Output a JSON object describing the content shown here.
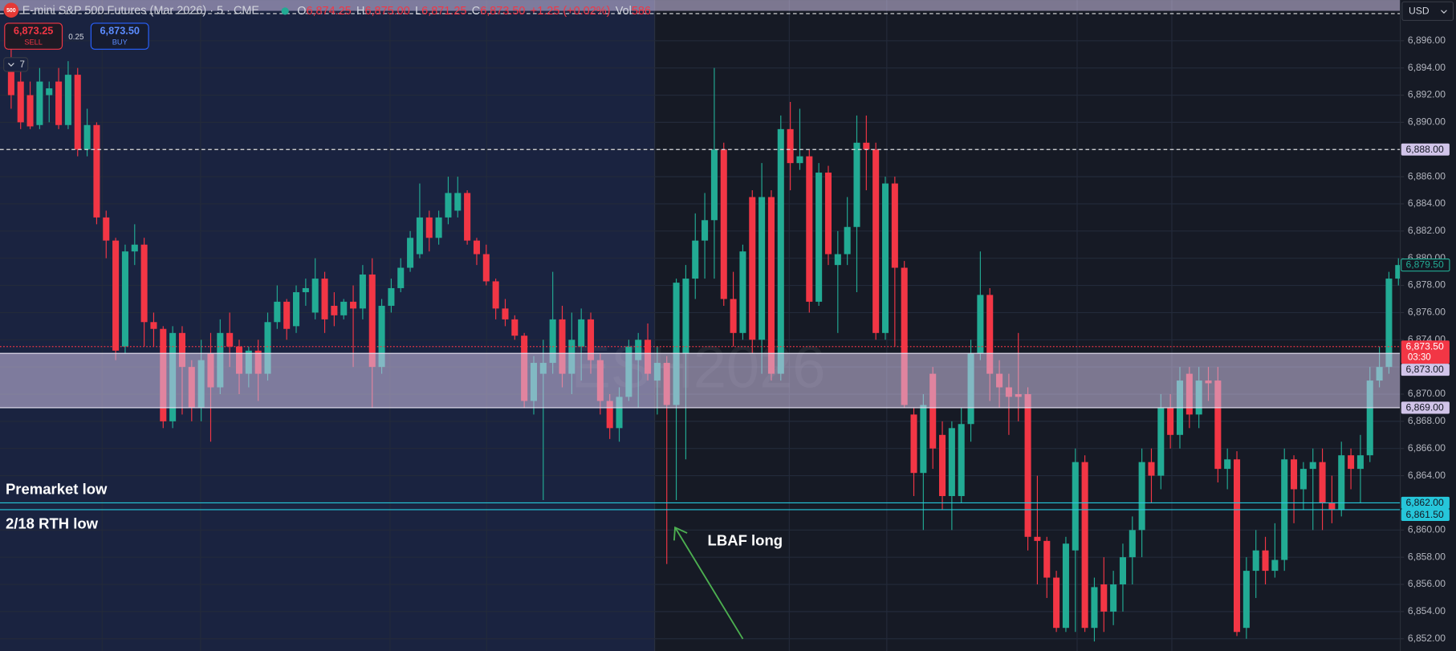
{
  "chart_data": {
    "type": "candlestick",
    "symbol_icon": "500",
    "title": "E-mini S&P 500 Futures (Mar 2026) · 5 · CME",
    "ohlc_legend": [
      {
        "key": "O",
        "value": "6,874.25"
      },
      {
        "key": "H",
        "value": "6,875.00"
      },
      {
        "key": "L",
        "value": "6,871.25"
      },
      {
        "key": "C",
        "value": "6,873.50"
      }
    ],
    "change": "+1.25 (+0.02%)",
    "volume": {
      "key": "Vol",
      "value": "586"
    },
    "sell": {
      "price": "6,873.25",
      "label": "SELL"
    },
    "spread": "0.25",
    "buy": {
      "price": "6,873.50",
      "label": "BUY"
    },
    "indicator_count": "7",
    "currency": "USD",
    "watermark": "ESH2026",
    "up_color": "#22ab94",
    "down_color": "#f23645",
    "open": [
      6894,
      6893,
      6892,
      6889.8,
      6892,
      6893,
      6889.8,
      6893.5,
      6888,
      6889.8,
      6883,
      6881.3,
      6873.5,
      6880.5,
      6881,
      6875.3,
      6874.8,
      6868,
      6874.5,
      6872,
      6869,
      6873,
      6870.5,
      6874.5,
      6873.5,
      6871.5,
      6873.2,
      6871.5,
      6875.3,
      6876.8,
      6875,
      6877.5,
      6876,
      6878.5,
      6876.5,
      6875.8,
      6876.8,
      6876.3,
      6878.8,
      6872,
      6876.5,
      6877.8,
      6879.3,
      6880.3,
      6883,
      6881.5,
      6883,
      6883.5,
      6884.8,
      6881.3,
      6880.3,
      6878.3,
      6876.3,
      6875.5,
      6874.3,
      6869.5,
      6871.5,
      6872.3,
      6875.5,
      6871.5,
      6873.5,
      6875.5,
      6872.5,
      6869.5,
      6867.5,
      6869.8,
      6872.5,
      6874,
      6871,
      6872.3,
      6869.2,
      6873,
      6878.5,
      6881.3,
      6882.8,
      6888,
      6877,
      6874.5,
      6884.5,
      6874,
      6884.5,
      6871.5,
      6889.5,
      6887,
      6887.5,
      6876.8,
      6886.3,
      6879.5,
      6880.3,
      6882.3,
      6888.5,
      6888,
      6874.5,
      6885.5,
      6879.3,
      6868.5,
      6864.2,
      6871.5,
      6867,
      6862.5,
      6862.5,
      6867.8,
      6873,
      6877.3,
      6871.5,
      6870.5,
      6870,
      6870,
      6859.5,
      6859.2,
      6856.5,
      6852.8,
      6858.5,
      6865,
      6852.8,
      6856,
      6854,
      6856,
      6858,
      6860,
      6865,
      6864,
      6869,
      6867,
      6871.5,
      6868.5,
      6871,
      6871,
      6864.5,
      6865.2,
      6852.8,
      6857,
      6858.5,
      6857,
      6857.8,
      6865.2,
      6863,
      6864.5,
      6865,
      6862,
      6861.5,
      6865.5,
      6864.5,
      6865.5,
      6871,
      6872,
      6878.5
    ],
    "high": [
      6895.5,
      6894,
      6893,
      6894,
      6893,
      6894,
      6894.5,
      6894,
      6891,
      6890,
      6883.5,
      6881.5,
      6881,
      6882.5,
      6881.5,
      6876,
      6875,
      6875,
      6875,
      6872.5,
      6874,
      6874.5,
      6875.5,
      6876,
      6874,
      6873.5,
      6874,
      6876,
      6878,
      6877,
      6878,
      6878.5,
      6880,
      6879,
      6877.5,
      6877,
      6878,
      6879.5,
      6880,
      6877,
      6878.5,
      6880,
      6882,
      6885.5,
      6883.5,
      6883.5,
      6886,
      6886,
      6885,
      6881.5,
      6881,
      6878.5,
      6877,
      6875.8,
      6874.5,
      6872.8,
      6874,
      6879,
      6876.5,
      6876,
      6876.3,
      6876,
      6873,
      6870,
      6870.5,
      6874,
      6874.5,
      6875.2,
      6873.5,
      6872.8,
      6878.5,
      6879.5,
      6883.3,
      6884.8,
      6894,
      6888.5,
      6879,
      6881,
      6885,
      6887,
      6885,
      6890.5,
      6891.5,
      6891,
      6888,
      6887,
      6886.8,
      6882,
      6884.5,
      6890.5,
      6890.5,
      6888.5,
      6886,
      6886,
      6879.8,
      6869,
      6870,
      6872,
      6868,
      6868,
      6869,
      6874,
      6880.5,
      6877.8,
      6872.5,
      6871.5,
      6874.5,
      6870.5,
      6864,
      6859.5,
      6857,
      6859.5,
      6866,
      6865.5,
      6856.5,
      6858,
      6857,
      6859,
      6861,
      6866,
      6866,
      6870,
      6870,
      6872,
      6872,
      6872,
      6872,
      6872,
      6866,
      6865.8,
      6858,
      6860,
      6859.5,
      6860.5,
      6866,
      6865.5,
      6865,
      6866,
      6866,
      6864,
      6866.5,
      6866,
      6867,
      6872,
      6873.5,
      6879,
      6880
    ],
    "low": [
      6891,
      6889.5,
      6889.5,
      6889.5,
      6890,
      6889.5,
      6889.5,
      6887.5,
      6887.5,
      6882.5,
      6880,
      6872.5,
      6873,
      6879.5,
      6873.5,
      6873.5,
      6867.5,
      6867.5,
      6868.5,
      6868,
      6868,
      6866.5,
      6870,
      6872,
      6870,
      6870.5,
      6869.5,
      6871,
      6874.8,
      6874,
      6874.5,
      6876.5,
      6875.5,
      6874.5,
      6875,
      6875.5,
      6872,
      6875.5,
      6869,
      6871.5,
      6876,
      6877.5,
      6879,
      6880,
      6880.5,
      6881,
      6882.5,
      6883,
      6881,
      6879.5,
      6878,
      6875.5,
      6875,
      6874,
      6869,
      6868.5,
      6862.2,
      6871.5,
      6870.5,
      6870,
      6871,
      6871.5,
      6868.5,
      6866.7,
      6866.5,
      6869.5,
      6869,
      6871,
      6868.5,
      6857.5,
      6862.2,
      6865.2,
      6877,
      6878.5,
      6878.5,
      6876.5,
      6873.5,
      6874,
      6873,
      6871.5,
      6871,
      6871,
      6885,
      6886.5,
      6876,
      6876.5,
      6879.5,
      6874.5,
      6879.5,
      6877.5,
      6885,
      6874,
      6874,
      6873.5,
      6869,
      6862.5,
      6860,
      6864.5,
      6861.5,
      6860,
      6862,
      6866.5,
      6872.5,
      6869.5,
      6869,
      6867,
      6868,
      6858.5,
      6856,
      6855,
      6852.5,
      6852.5,
      6852.5,
      6852.5,
      6851.8,
      6852.5,
      6853,
      6854,
      6856,
      6858,
      6862,
      6863,
      6866,
      6866,
      6867.5,
      6867.5,
      6869.5,
      6863.5,
      6863,
      6852.2,
      6852,
      6855,
      6856,
      6856.5,
      6857,
      6860.5,
      6861.5,
      6860,
      6860,
      6860.5,
      6861,
      6863,
      6862,
      6865,
      6870.5,
      6871.5,
      6878
    ],
    "close": [
      6892,
      6890,
      6889.7,
      6893,
      6892.5,
      6889.8,
      6893.5,
      6888,
      6889.8,
      6883,
      6881.3,
      6873.2,
      6880.5,
      6881,
      6875.3,
      6874.8,
      6868,
      6874.5,
      6872,
      6869,
      6872.5,
      6870.5,
      6874.5,
      6873.5,
      6871.5,
      6873.2,
      6871.5,
      6875.3,
      6876.8,
      6874.8,
      6877.5,
      6877.8,
      6878.5,
      6875.5,
      6875.8,
      6876.8,
      6876.3,
      6878.8,
      6872,
      6876.5,
      6877.8,
      6879.3,
      6881.5,
      6883,
      6881.5,
      6883,
      6884.8,
      6884.8,
      6881.3,
      6880.3,
      6878.3,
      6876.3,
      6875.5,
      6874.3,
      6869.5,
      6872.3,
      6872.3,
      6875.5,
      6871.5,
      6874,
      6875.5,
      6872.5,
      6869.5,
      6867.5,
      6869.8,
      6873.5,
      6874,
      6871.5,
      6872.3,
      6869.2,
      6878.2,
      6878.5,
      6881.3,
      6882.8,
      6888,
      6877,
      6874.5,
      6880.5,
      6874,
      6884.5,
      6871.5,
      6889.5,
      6887,
      6887.5,
      6876.8,
      6886.3,
      6880.3,
      6880.3,
      6882.3,
      6888.5,
      6888,
      6874.5,
      6885.5,
      6879.3,
      6869.2,
      6864.2,
      6869.2,
      6866,
      6862.5,
      6867.5,
      6867.8,
      6873,
      6877.3,
      6871.5,
      6870.5,
      6869.8,
      6869.8,
      6859.5,
      6859.2,
      6856.5,
      6852.8,
      6859,
      6865,
      6852.8,
      6855.8,
      6854,
      6856,
      6858,
      6860,
      6865,
      6864,
      6869,
      6867,
      6871,
      6868.5,
      6871,
      6870.8,
      6864.5,
      6865.2,
      6852.5,
      6857,
      6858.5,
      6857,
      6857.8,
      6865.2,
      6863,
      6864.5,
      6865,
      6862,
      6861.5,
      6865.5,
      6864.5,
      6865.5,
      6871,
      6872,
      6878.5,
      6879.5
    ],
    "ylim": [
      6851.1,
      6899.0
    ],
    "yticks": [
      {
        "value": 6852,
        "label": "6,852.00"
      },
      {
        "value": 6854,
        "label": "6,854.00"
      },
      {
        "value": 6856,
        "label": "6,856.00"
      },
      {
        "value": 6858,
        "label": "6,858.00"
      },
      {
        "value": 6860,
        "label": "6,860.00"
      },
      {
        "value": 6862,
        "label": "6,862.00"
      },
      {
        "value": 6864,
        "label": "6,864.00"
      },
      {
        "value": 6866,
        "label": "6,866.00"
      },
      {
        "value": 6868,
        "label": "6,868.00"
      },
      {
        "value": 6870,
        "label": "6,870.00"
      },
      {
        "value": 6872,
        "label": "6,872.00"
      },
      {
        "value": 6874,
        "label": "6,874.00"
      },
      {
        "value": 6876,
        "label": "6,876.00"
      },
      {
        "value": 6878,
        "label": "6,878.00"
      },
      {
        "value": 6880,
        "label": "6,880.00"
      },
      {
        "value": 6882,
        "label": "6,882.00"
      },
      {
        "value": 6884,
        "label": "6,884.00"
      },
      {
        "value": 6886,
        "label": "6,886.00"
      },
      {
        "value": 6888,
        "label": "6,888.00"
      },
      {
        "value": 6890,
        "label": "6,890.00"
      },
      {
        "value": 6892,
        "label": "6,892.00"
      },
      {
        "value": 6894,
        "label": "6,894.00"
      },
      {
        "value": 6896,
        "label": "6,896.00"
      }
    ],
    "grid": true,
    "zones": [
      {
        "from": 6869,
        "to": 6873,
        "color": "#d1c4e9"
      },
      {
        "from": 6898.2,
        "to": 6899.0,
        "color": "#d1c4e9"
      }
    ],
    "levels": [
      {
        "value": 6898,
        "line": "dashed",
        "line_color": "#e0e0e0"
      },
      {
        "value": 6888,
        "label": "6,888.00",
        "line": "dashed",
        "line_color": "#e0e0e0",
        "tag_bg": "#d1c4e9",
        "tag_fg": "#131722"
      },
      {
        "value": 6879.5,
        "label": "6,879.50",
        "line": "none",
        "tag_bg": "#131722",
        "tag_fg": "#22ab94"
      },
      {
        "value": 6873.5,
        "label": "6,873.50",
        "countdown": "03:30",
        "line": "dotted",
        "line_color": "#f23645",
        "tag_bg": "#f23645",
        "tag_fg": "#ffffff"
      },
      {
        "value": 6873,
        "label": "6,873.00",
        "line": "solid",
        "line_color": "#e8e4f4",
        "tag_bg": "#d1c4e9",
        "tag_fg": "#131722"
      },
      {
        "value": 6869,
        "label": "6,869.00",
        "line": "solid",
        "line_color": "#e8e4f4",
        "tag_bg": "#d1c4e9",
        "tag_fg": "#131722"
      },
      {
        "value": 6862,
        "label": "6,862.00",
        "line": "solid",
        "line_color": "#26c6da",
        "tag_bg": "#26c6da",
        "tag_fg": "#131722"
      },
      {
        "value": 6861.5,
        "label": "6,861.50",
        "line": "solid",
        "line_color": "#26c6da",
        "tag_bg": "#26c6da",
        "tag_fg": "#131722"
      }
    ],
    "annotations": [
      "Premarket low",
      "2/18 RTH low",
      "LBAF long"
    ]
  }
}
